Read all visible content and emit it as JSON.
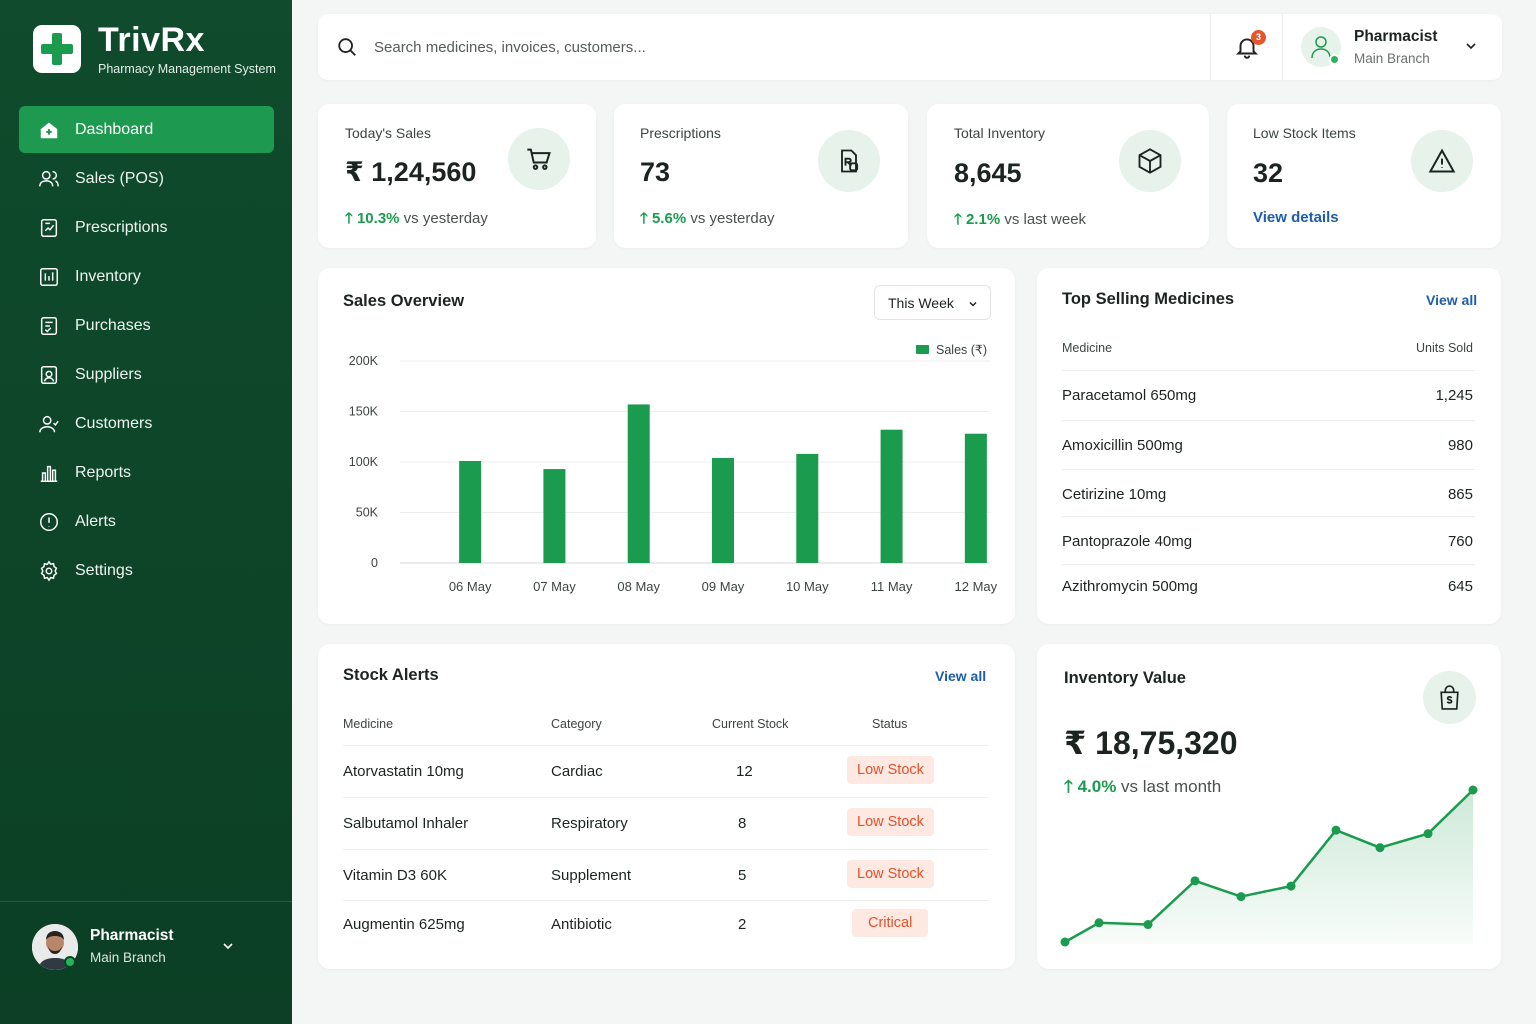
{
  "brand": {
    "name": "TrivRx",
    "subtitle": "Pharmacy Management System"
  },
  "sidebar": {
    "items": [
      {
        "label": "Dashboard",
        "icon": "dashboard-icon",
        "active": true
      },
      {
        "label": "Sales (POS)",
        "icon": "users-icon"
      },
      {
        "label": "Prescriptions",
        "icon": "prescription-icon"
      },
      {
        "label": "Inventory",
        "icon": "inventory-icon"
      },
      {
        "label": "Purchases",
        "icon": "purchases-icon"
      },
      {
        "label": "Suppliers",
        "icon": "suppliers-icon"
      },
      {
        "label": "Customers",
        "icon": "customers-icon"
      },
      {
        "label": "Reports",
        "icon": "reports-icon"
      },
      {
        "label": "Alerts",
        "icon": "alert-icon"
      },
      {
        "label": "Settings",
        "icon": "gear-icon"
      }
    ],
    "user": {
      "name": "Pharmacist",
      "branch": "Main Branch"
    }
  },
  "topbar": {
    "search_placeholder": "Search medicines, invoices, customers...",
    "notification_count": "3",
    "user": {
      "name": "Pharmacist",
      "branch": "Main Branch"
    }
  },
  "stats": [
    {
      "label": "Today's Sales",
      "value": "₹ 1,24,560",
      "change_pct": "10.3%",
      "change_text": " vs yesterday",
      "icon": "cart-icon"
    },
    {
      "label": "Prescriptions",
      "value": "73",
      "change_pct": "5.6%",
      "change_text": " vs yesterday",
      "icon": "prescription-doc-icon"
    },
    {
      "label": "Total Inventory",
      "value": "8,645",
      "change_pct": "2.1%",
      "change_text": " vs last week",
      "icon": "box-icon"
    },
    {
      "label": "Low Stock Items",
      "value": "32",
      "link": "View details",
      "icon": "warning-icon"
    }
  ],
  "sales_overview": {
    "title": "Sales Overview",
    "period": "This Week",
    "legend": "Sales (₹)"
  },
  "chart_data": [
    {
      "type": "bar",
      "title": "Sales Overview",
      "categories": [
        "06 May",
        "07 May",
        "08 May",
        "09 May",
        "10 May",
        "11 May",
        "12 May"
      ],
      "series": [
        {
          "name": "Sales (₹)",
          "values": [
            101000,
            93000,
            157000,
            104000,
            108000,
            132000,
            128000
          ]
        }
      ],
      "ylim": [
        0,
        200000
      ],
      "yticks": [
        "0",
        "50K",
        "100K",
        "150K",
        "200K"
      ],
      "grid": true,
      "legend": "top-right",
      "color": "#1b9b4d"
    },
    {
      "type": "area",
      "title": "Inventory Value",
      "values": [
        1,
        2.1,
        2.0,
        4.5,
        3.6,
        4.2,
        7.4,
        6.4,
        7.2,
        9.7
      ],
      "color": "#1b9b4d"
    }
  ],
  "top_selling": {
    "title": "Top Selling Medicines",
    "view_all": "View all",
    "col_medicine": "Medicine",
    "col_units": "Units Sold",
    "rows": [
      {
        "name": "Paracetamol 650mg",
        "units": "1,245"
      },
      {
        "name": "Amoxicillin 500mg",
        "units": "980"
      },
      {
        "name": "Cetirizine 10mg",
        "units": "865"
      },
      {
        "name": "Pantoprazole 40mg",
        "units": "760"
      },
      {
        "name": "Azithromycin 500mg",
        "units": "645"
      }
    ]
  },
  "stock_alerts": {
    "title": "Stock Alerts",
    "view_all": "View all",
    "columns": [
      "Medicine",
      "Category",
      "Current Stock",
      "Status"
    ],
    "rows": [
      {
        "medicine": "Atorvastatin 10mg",
        "category": "Cardiac",
        "stock": "12",
        "status": "Low Stock"
      },
      {
        "medicine": "Salbutamol Inhaler",
        "category": "Respiratory",
        "stock": "8",
        "status": "Low Stock"
      },
      {
        "medicine": "Vitamin D3 60K",
        "category": "Supplement",
        "stock": "5",
        "status": "Low Stock"
      },
      {
        "medicine": "Augmentin 625mg",
        "category": "Antibiotic",
        "stock": "2",
        "status": "Critical"
      }
    ]
  },
  "inventory_value": {
    "title": "Inventory Value",
    "value": "₹ 18,75,320",
    "change_pct": "4.0%",
    "change_text": " vs last month",
    "icon": "shopping-bag-icon"
  },
  "colors": {
    "brand": "#1b9b4d",
    "sidebar": "#0f4b2c",
    "link": "#1e5ea8",
    "danger": "#e0532c"
  }
}
